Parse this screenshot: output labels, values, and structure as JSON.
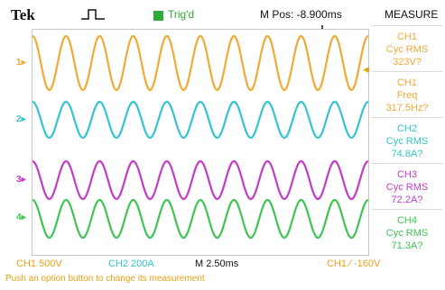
{
  "header": {
    "brand": "Tek",
    "trigger_icon": "square-pulse-icon",
    "trigger_status": "Trig'd",
    "m_pos": "M Pos: -8.900ms",
    "menu_title": "MEASURE"
  },
  "channels": [
    {
      "id": "1",
      "color": "#f2a935",
      "cycles": 10
    },
    {
      "id": "2",
      "color": "#35c4ce",
      "cycles": 10
    },
    {
      "id": "3",
      "color": "#c23cc6",
      "cycles": 10
    },
    {
      "id": "4",
      "color": "#3fc454",
      "cycles": 10
    }
  ],
  "measurements": [
    {
      "line1": "CH1",
      "line2": "Cyc RMS",
      "line3": "323V?",
      "color": "#f2a935"
    },
    {
      "line1": "CH1",
      "line2": "Freq",
      "line3": "317.5Hz?",
      "color": "#f2a935"
    },
    {
      "line1": "CH2",
      "line2": "Cyc RMS",
      "line3": "74.8A?",
      "color": "#35c4ce"
    },
    {
      "line1": "CH3",
      "line2": "Cyc RMS",
      "line3": "72.2A?",
      "color": "#c23cc6"
    },
    {
      "line1": "CH4",
      "line2": "Cyc RMS",
      "line3": "71.3A?",
      "color": "#3fc454"
    }
  ],
  "bottom": {
    "ch1_scale": "CH1  500V",
    "ch2_scale": "CH2  200A",
    "timebase": "M 2.50ms",
    "trigger": "CH1  ∕  -160V",
    "hint": "Push an option button to change its measurement"
  },
  "colors": {
    "ch1": "#f2a935",
    "ch2": "#35c4ce",
    "ch3": "#c23cc6",
    "ch4": "#3fc454",
    "trig": "#2eaa3c"
  }
}
